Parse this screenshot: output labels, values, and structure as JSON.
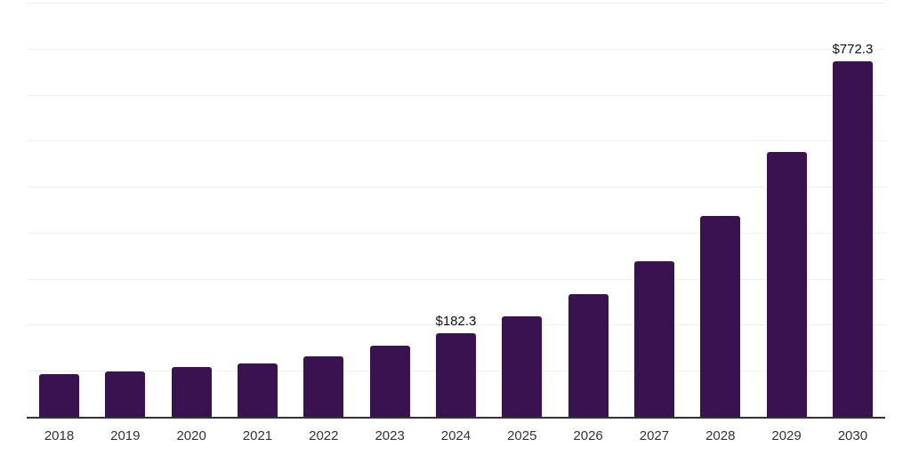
{
  "chart_data": {
    "type": "bar",
    "title": "",
    "xlabel": "",
    "ylabel": "",
    "categories": [
      "2018",
      "2019",
      "2020",
      "2021",
      "2022",
      "2023",
      "2024",
      "2025",
      "2026",
      "2027",
      "2028",
      "2029",
      "2030"
    ],
    "values": [
      92.2,
      98.6,
      107.8,
      116.4,
      132.3,
      153.6,
      182.3,
      217.7,
      266.6,
      338.1,
      437.0,
      575.2,
      772.3
    ],
    "data_labels": [
      "",
      "",
      "",
      "",
      "",
      "",
      "$182.3",
      "",
      "",
      "",
      "",
      "",
      "$772.3"
    ],
    "ylim": [
      0,
      900
    ],
    "grid_step": 100,
    "grid": true,
    "legend": false,
    "colors": {
      "bar": "#3A124F",
      "grid": "#F0F0F0",
      "axis": "#333333",
      "tick_labels": "#333333",
      "data_labels": "#111111"
    }
  }
}
